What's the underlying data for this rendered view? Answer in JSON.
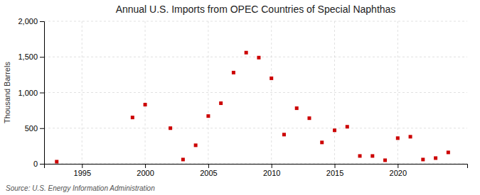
{
  "chart_data": {
    "type": "scatter",
    "title": "Annual U.S. Imports from OPEC Countries of Special Naphthas",
    "y_label": "Thousand Barrels",
    "source": "Source: U.S. Energy Information Administration",
    "x": [
      1993,
      1999,
      2000,
      2002,
      2003,
      2004,
      2005,
      2006,
      2007,
      2008,
      2009,
      2010,
      2011,
      2012,
      2013,
      2014,
      2015,
      2016,
      2017,
      2018,
      2019,
      2020,
      2021,
      2022,
      2023,
      2024
    ],
    "values": [
      30,
      650,
      830,
      500,
      60,
      260,
      670,
      850,
      1280,
      1560,
      1490,
      1200,
      410,
      780,
      640,
      300,
      470,
      520,
      110,
      110,
      50,
      360,
      380,
      60,
      80,
      160
    ],
    "color": "#cc0000",
    "marker": "square",
    "xlim": [
      1992,
      2025.5
    ],
    "ylim": [
      0,
      2000
    ],
    "xticks": [
      1995,
      2000,
      2005,
      2010,
      2015,
      2020
    ],
    "yticks": [
      0,
      500,
      {
        "value": 1000,
        "label": "1,000"
      },
      {
        "value": 1500,
        "label": "1,500"
      },
      {
        "value": 2000,
        "label": "2,000"
      }
    ],
    "grid": true
  }
}
